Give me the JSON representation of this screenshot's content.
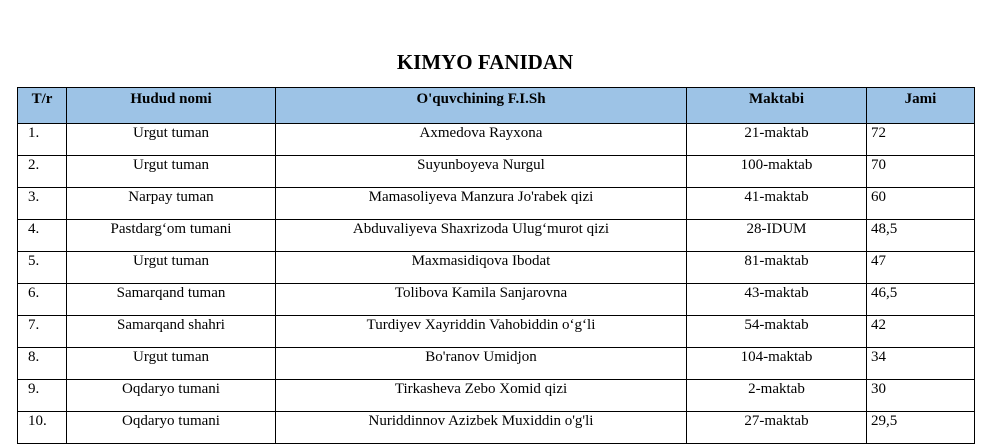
{
  "title": "KIMYO FANIDAN",
  "headers": [
    "T/r",
    "Hudud nomi",
    "O'quvchining F.I.Sh",
    "Maktabi",
    "Jami"
  ],
  "rows": [
    {
      "n": "1.",
      "region": "Urgut tuman",
      "name": "Axmedova Rayxona",
      "school": "21-maktab",
      "total": "72"
    },
    {
      "n": "2.",
      "region": "Urgut tuman",
      "name": "Suyunboyeva Nurgul",
      "school": "100-maktab",
      "total": "70"
    },
    {
      "n": "3.",
      "region": "Narpay tuman",
      "name": "Mamasoliyeva Manzura Jo'rabek qizi",
      "school": "41-maktab",
      "total": "60"
    },
    {
      "n": "4.",
      "region": "Pastdarg‘om tumani",
      "name": "Abduvaliyeva Shaxrizoda Ulug‘murot qizi",
      "school": "28-IDUM",
      "total": "48,5"
    },
    {
      "n": "5.",
      "region": "Urgut tuman",
      "name": "Maxmasidiqova Ibodat",
      "school": "81-maktab",
      "total": "47"
    },
    {
      "n": "6.",
      "region": "Samarqand tuman",
      "name": "Tolibova Kamila Sanjarovna",
      "school": "43-maktab",
      "total": "46,5"
    },
    {
      "n": "7.",
      "region": "Samarqand shahri",
      "name": "Turdiyev Xayriddin Vahobiddin o‘g‘li",
      "school": "54-maktab",
      "total": "42"
    },
    {
      "n": "8.",
      "region": "Urgut tuman",
      "name": "Bo'ranov Umidjon",
      "school": "104-maktab",
      "total": "34"
    },
    {
      "n": "9.",
      "region": "Oqdaryo tumani",
      "name": "Tirkasheva Zebo Xomid qizi",
      "school": "2-maktab",
      "total": "30"
    },
    {
      "n": "10.",
      "region": "Oqdaryo tumani",
      "name": "Nuriddinnov Azizbek Muxiddin o'g'li",
      "school": "27-maktab",
      "total": "29,5"
    }
  ]
}
